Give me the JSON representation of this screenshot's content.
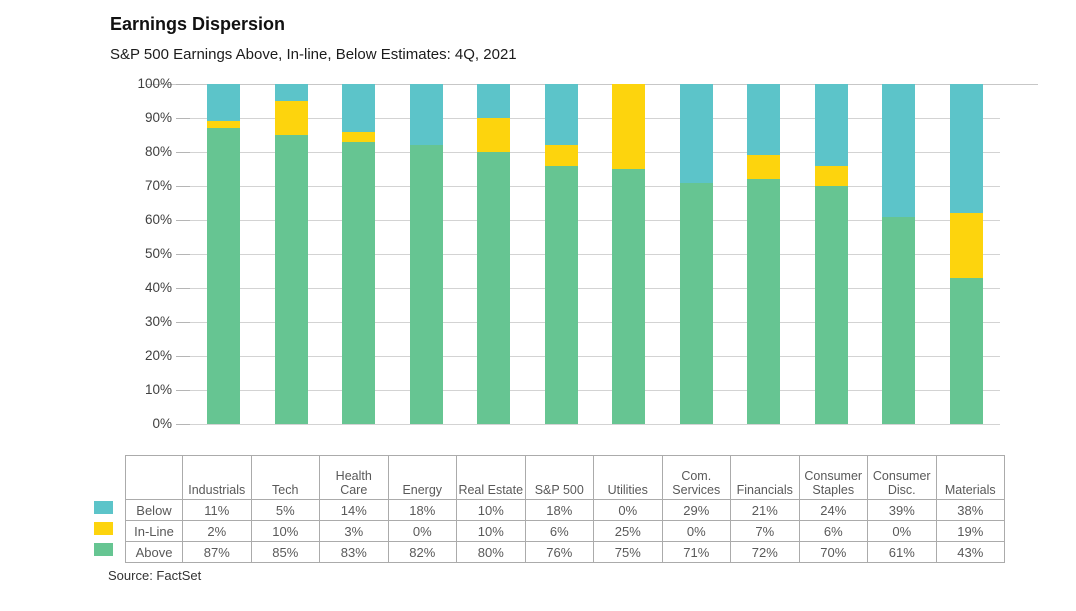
{
  "header": {
    "title": "Earnings Dispersion",
    "subtitle": "S&P 500 Earnings Above, In-line, Below Estimates: 4Q, 2021"
  },
  "source": "Source: FactSet",
  "colors": {
    "below": "#5cc4c9",
    "in_line": "#fdd40d",
    "above": "#66c592",
    "gridline": "#d3d3d3",
    "table_border": "#ababab",
    "text_muted": "#595959"
  },
  "chart_data": {
    "type": "bar",
    "stacked": true,
    "title": "Earnings Dispersion",
    "subtitle": "S&P 500 Earnings Above, In-line, Below Estimates: 4Q, 2021",
    "categories": [
      "Industrials",
      "Tech",
      "Health Care",
      "Energy",
      "Real Estate",
      "S&P 500",
      "Utilities",
      "Com. Services",
      "Financials",
      "Consumer Staples",
      "Consumer Disc.",
      "Materials"
    ],
    "series": [
      {
        "name": "Below",
        "color": "#5cc4c9",
        "values": [
          11,
          5,
          14,
          18,
          10,
          18,
          0,
          29,
          21,
          24,
          39,
          38
        ]
      },
      {
        "name": "In-Line",
        "color": "#fdd40d",
        "values": [
          2,
          10,
          3,
          0,
          10,
          6,
          25,
          0,
          7,
          6,
          0,
          19
        ]
      },
      {
        "name": "Above",
        "color": "#66c592",
        "values": [
          87,
          85,
          83,
          82,
          80,
          76,
          75,
          71,
          72,
          70,
          61,
          43
        ]
      }
    ],
    "stack_order_top_to_bottom": [
      "Below",
      "In-Line",
      "Above"
    ],
    "ylim": [
      0,
      100
    ],
    "ytick_step": 10,
    "yticks": [
      "0%",
      "10%",
      "20%",
      "30%",
      "40%",
      "50%",
      "60%",
      "70%",
      "80%",
      "90%",
      "100%"
    ],
    "grid": true,
    "value_suffix": "%",
    "legend_position": "left-of-table",
    "source": "Source: FactSet"
  }
}
